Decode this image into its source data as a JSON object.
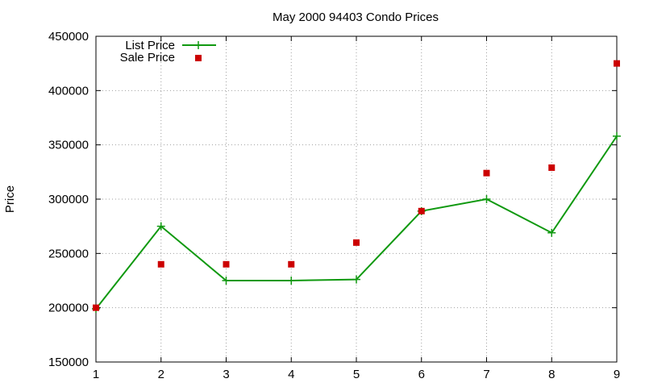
{
  "chart_data": {
    "type": "line",
    "title": "May 2000 94403 Condo Prices",
    "xlabel": "",
    "ylabel": "Price",
    "xlim": [
      1,
      9
    ],
    "ylim": [
      150000,
      450000
    ],
    "x_ticks": [
      "1",
      "2",
      "3",
      "4",
      "5",
      "6",
      "7",
      "8",
      "9"
    ],
    "y_ticks": [
      "150000",
      "200000",
      "250000",
      "300000",
      "350000",
      "400000",
      "450000"
    ],
    "grid": true,
    "legend_position": "top-left",
    "x": [
      1,
      2,
      3,
      4,
      5,
      6,
      7,
      8,
      9
    ],
    "series": [
      {
        "name": "List Price",
        "style": "line+cross",
        "color": "#109910",
        "values": [
          199000,
          275000,
          225000,
          225000,
          226000,
          289000,
          300000,
          269000,
          358000
        ]
      },
      {
        "name": "Sale Price",
        "style": "square",
        "color": "#cc0000",
        "values": [
          200000,
          240000,
          240000,
          240000,
          260000,
          289000,
          324000,
          329000,
          425000
        ]
      }
    ]
  }
}
